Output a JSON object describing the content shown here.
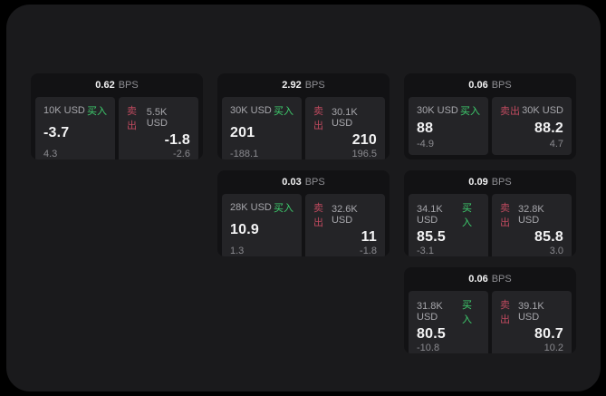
{
  "labels": {
    "bps_unit": "BPS",
    "buy": "买入",
    "sell": "卖出"
  },
  "colors": {
    "page_background": "#000000",
    "panel_background": "#1a1a1c",
    "card_background": "#121214",
    "tile_background": "#242427",
    "buy_accent": "#3ecf6e",
    "sell_accent": "#bf4a5f"
  },
  "cards": [
    {
      "bps": "0.62",
      "buy": {
        "amount": "10K USD",
        "price": "-3.7",
        "change": "4.3"
      },
      "sell": {
        "amount": "5.5K USD",
        "price": "-1.8",
        "change": "-2.6"
      }
    },
    {
      "bps": "2.92",
      "buy": {
        "amount": "30K USD",
        "price": "201",
        "change": "-188.1"
      },
      "sell": {
        "amount": "30.1K USD",
        "price": "210",
        "change": "196.5"
      }
    },
    {
      "bps": "0.06",
      "buy": {
        "amount": "30K USD",
        "price": "88",
        "change": "-4.9"
      },
      "sell": {
        "amount": "30K USD",
        "price": "88.2",
        "change": "4.7"
      }
    },
    {
      "bps": "0.03",
      "buy": {
        "amount": "28K USD",
        "price": "10.9",
        "change": "1.3"
      },
      "sell": {
        "amount": "32.6K USD",
        "price": "11",
        "change": "-1.8"
      }
    },
    {
      "bps": "0.09",
      "buy": {
        "amount": "34.1K USD",
        "price": "85.5",
        "change": "-3.1"
      },
      "sell": {
        "amount": "32.8K USD",
        "price": "85.8",
        "change": "3.0"
      }
    },
    {
      "bps": "0.06",
      "buy": {
        "amount": "31.8K USD",
        "price": "80.5",
        "change": "-10.8"
      },
      "sell": {
        "amount": "39.1K USD",
        "price": "80.7",
        "change": "10.2"
      }
    }
  ]
}
